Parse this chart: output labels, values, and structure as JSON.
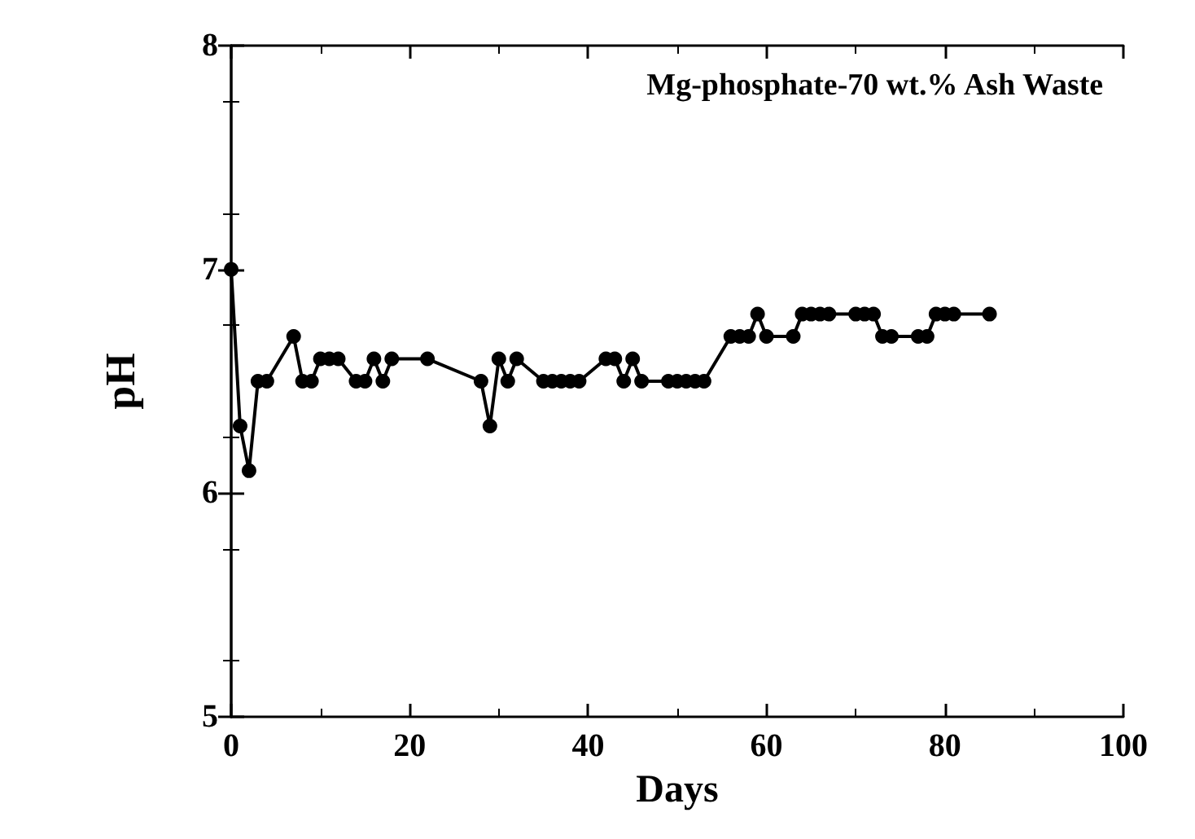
{
  "chart_data": {
    "type": "line",
    "title": "Mg-phosphate-70 wt.% Ash Waste",
    "xlabel": "Days",
    "ylabel": "pH",
    "series": [
      {
        "color": "#000000",
        "x": [
          0,
          1,
          2,
          3,
          4,
          7,
          8,
          9,
          10,
          11,
          12,
          14,
          15,
          16,
          17,
          18,
          22,
          28,
          29,
          30,
          31,
          32,
          35,
          36,
          37,
          38,
          39,
          42,
          43,
          44,
          45,
          46,
          49,
          50,
          51,
          52,
          53,
          56,
          57,
          58,
          59,
          60,
          63,
          64,
          65,
          66,
          67,
          70,
          71,
          72,
          73,
          74,
          77,
          78,
          79,
          80,
          81,
          85
        ],
        "values": [
          7.0,
          6.3,
          6.1,
          6.5,
          6.5,
          6.7,
          6.5,
          6.5,
          6.6,
          6.6,
          6.6,
          6.5,
          6.5,
          6.6,
          6.5,
          6.6,
          6.6,
          6.5,
          6.3,
          6.6,
          6.5,
          6.6,
          6.5,
          6.5,
          6.5,
          6.5,
          6.5,
          6.6,
          6.6,
          6.5,
          6.6,
          6.5,
          6.5,
          6.5,
          6.5,
          6.5,
          6.5,
          6.7,
          6.7,
          6.7,
          6.8,
          6.7,
          6.7,
          6.8,
          6.8,
          6.8,
          6.8,
          6.8,
          6.8,
          6.8,
          6.7,
          6.7,
          6.7,
          6.7,
          6.8,
          6.8,
          6.8,
          6.8
        ]
      }
    ],
    "xlim": [
      0,
      100
    ],
    "xticks": [
      0,
      20,
      40,
      60,
      80,
      100
    ],
    "ylim": [
      5,
      8
    ],
    "yticks": [
      5,
      6,
      7,
      8
    ],
    "marker": "circle",
    "line_style": "solid",
    "grid": false
  }
}
